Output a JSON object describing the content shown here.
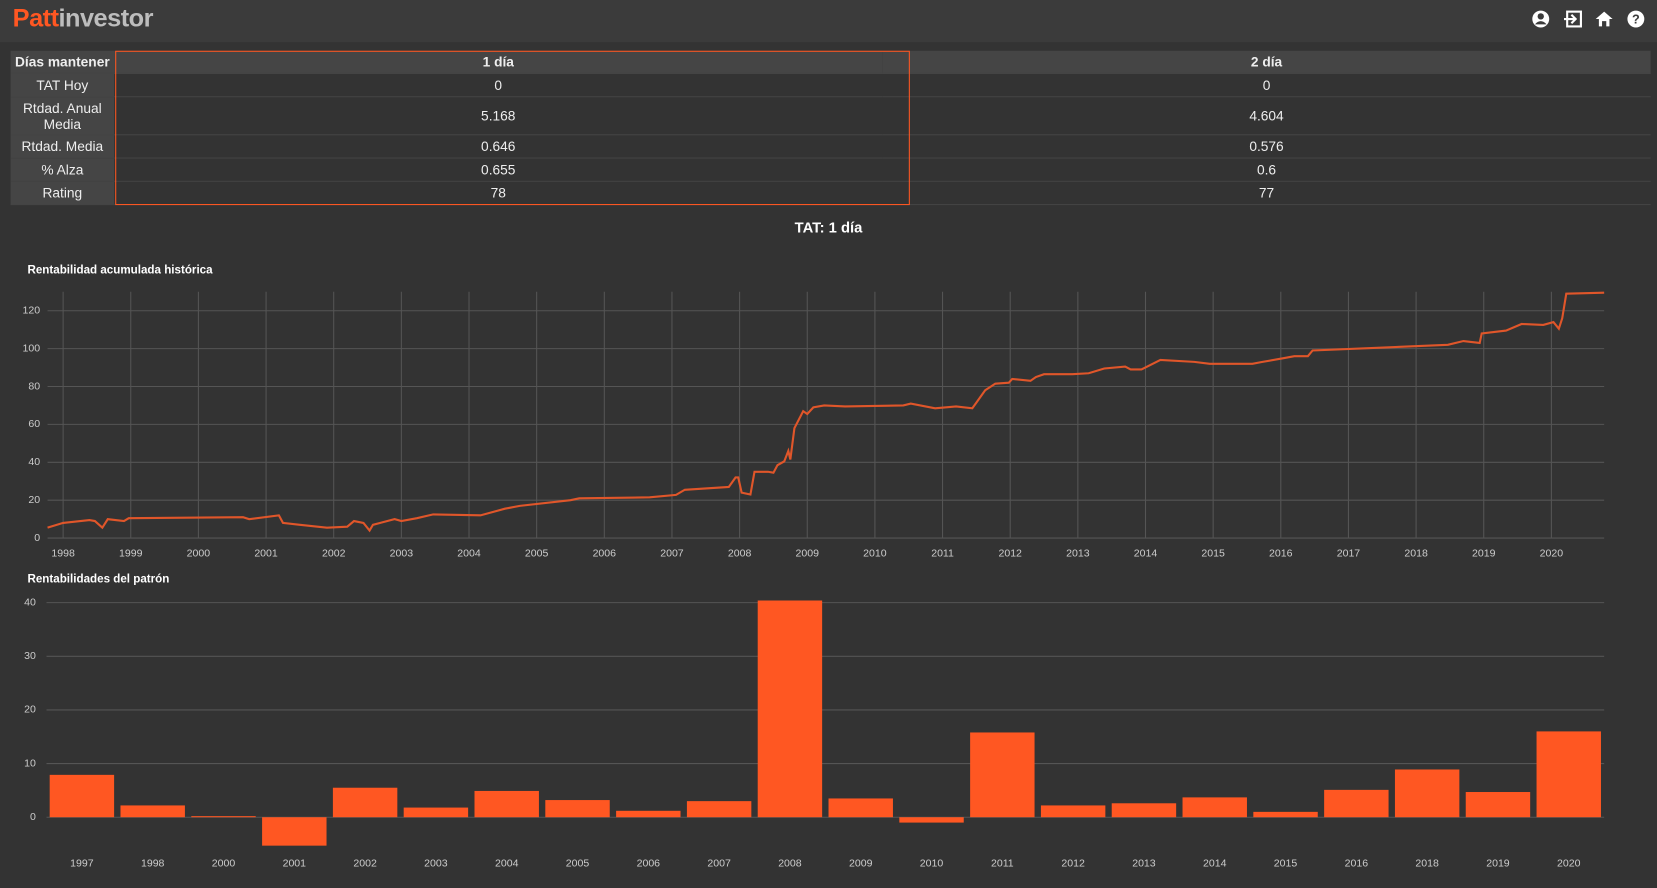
{
  "header": {
    "logo": [
      "Patt",
      "investor"
    ]
  },
  "table": {
    "header": [
      "Días mantener",
      "1 día",
      "2 día"
    ],
    "rows": [
      [
        "TAT Hoy",
        "0",
        "0"
      ],
      [
        "Rtdad. Anual Media",
        "5.168",
        "4.604"
      ],
      [
        "Rtdad. Media",
        "0.646",
        "0.576"
      ],
      [
        "% Alza",
        "0.655",
        "0.6"
      ],
      [
        "Rating",
        "78",
        "77"
      ]
    ]
  },
  "section_title": "TAT: 1 día",
  "chart_data": [
    {
      "type": "line",
      "title": "Rentabilidad acumulada histórica",
      "color": "#e0562a",
      "grid": true,
      "x": [
        1997.77,
        1998.0,
        1998.39,
        1998.47,
        1998.58,
        1998.66,
        1998.9,
        1998.97,
        2000.66,
        2000.75,
        2001.19,
        2001.25,
        2001.5,
        2001.9,
        2002.2,
        2002.3,
        2002.44,
        2002.53,
        2002.58,
        2002.9,
        2003.0,
        2003.23,
        2003.47,
        2004.17,
        2004.53,
        2004.75,
        2005.5,
        2005.63,
        2006.67,
        2007.06,
        2007.19,
        2007.84,
        2007.94,
        2007.98,
        2008.03,
        2008.16,
        2008.22,
        2008.42,
        2008.5,
        2008.56,
        2008.66,
        2008.72,
        2008.75,
        2008.81,
        2008.94,
        2009.0,
        2009.09,
        2009.25,
        2009.56,
        2010.42,
        2010.53,
        2010.89,
        2011.2,
        2011.44,
        2011.5,
        2011.63,
        2011.78,
        2011.98,
        2012.03,
        2012.3,
        2012.38,
        2012.5,
        2012.92,
        2013.16,
        2013.39,
        2013.7,
        2013.78,
        2013.94,
        2014.22,
        2014.72,
        2014.95,
        2015.58,
        2015.73,
        2016.05,
        2016.2,
        2016.4,
        2016.47,
        2018.47,
        2018.7,
        2018.94,
        2018.97,
        2019.33,
        2019.56,
        2019.88,
        2020.03,
        2020.11,
        2020.16,
        2020.22,
        2020.78
      ],
      "values": [
        5.5,
        8,
        9.5,
        9,
        5.5,
        10,
        9,
        10.5,
        11,
        10,
        12,
        8,
        7,
        5.5,
        6,
        9,
        8,
        4,
        7,
        10,
        9,
        10.5,
        12.5,
        12,
        15.5,
        17,
        20,
        21,
        21.5,
        22.8,
        25.5,
        27,
        32,
        32,
        24,
        23,
        35,
        35,
        34.5,
        38.5,
        40.5,
        46,
        41.5,
        58,
        67,
        65.5,
        69,
        70,
        69.5,
        70,
        71,
        68.5,
        69.5,
        68.5,
        71.5,
        78,
        81.5,
        82,
        84,
        83,
        85,
        86.5,
        86.5,
        87,
        89.5,
        90.5,
        89,
        89,
        94,
        93,
        92,
        92,
        93,
        95,
        96,
        96,
        99,
        102,
        104,
        103,
        108,
        109.5,
        113,
        112.5,
        114,
        110.5,
        116,
        129,
        129.5
      ],
      "xlim": [
        1997.77,
        2020.78
      ],
      "xticks": [
        1998,
        1999,
        2000,
        2001,
        2002,
        2003,
        2004,
        2005,
        2006,
        2007,
        2008,
        2009,
        2010,
        2011,
        2012,
        2013,
        2014,
        2015,
        2016,
        2017,
        2018,
        2019,
        2020
      ],
      "ylim": [
        0,
        130
      ],
      "yticks": [
        0,
        20,
        40,
        60,
        80,
        100,
        120
      ]
    },
    {
      "type": "bar",
      "title": "Rentabilidades del patrón",
      "color": "#ff5722",
      "grid": true,
      "categories": [
        "1997",
        "1998",
        "2000",
        "2001",
        "2002",
        "2003",
        "2004",
        "2005",
        "2006",
        "2007",
        "2008",
        "2009",
        "2010",
        "2011",
        "2012",
        "2013",
        "2014",
        "2015",
        "2016",
        "2018",
        "2019",
        "2020"
      ],
      "values": [
        7.9,
        2.2,
        0.2,
        -5.3,
        5.5,
        1.8,
        4.9,
        3.2,
        1.2,
        3.0,
        40.4,
        3.5,
        -1.0,
        15.8,
        2.2,
        2.6,
        3.7,
        1.0,
        5.1,
        8.9,
        4.7,
        16.0
      ],
      "ylim": [
        -6,
        41
      ],
      "yticks": [
        0,
        10,
        20,
        30,
        40
      ]
    }
  ]
}
